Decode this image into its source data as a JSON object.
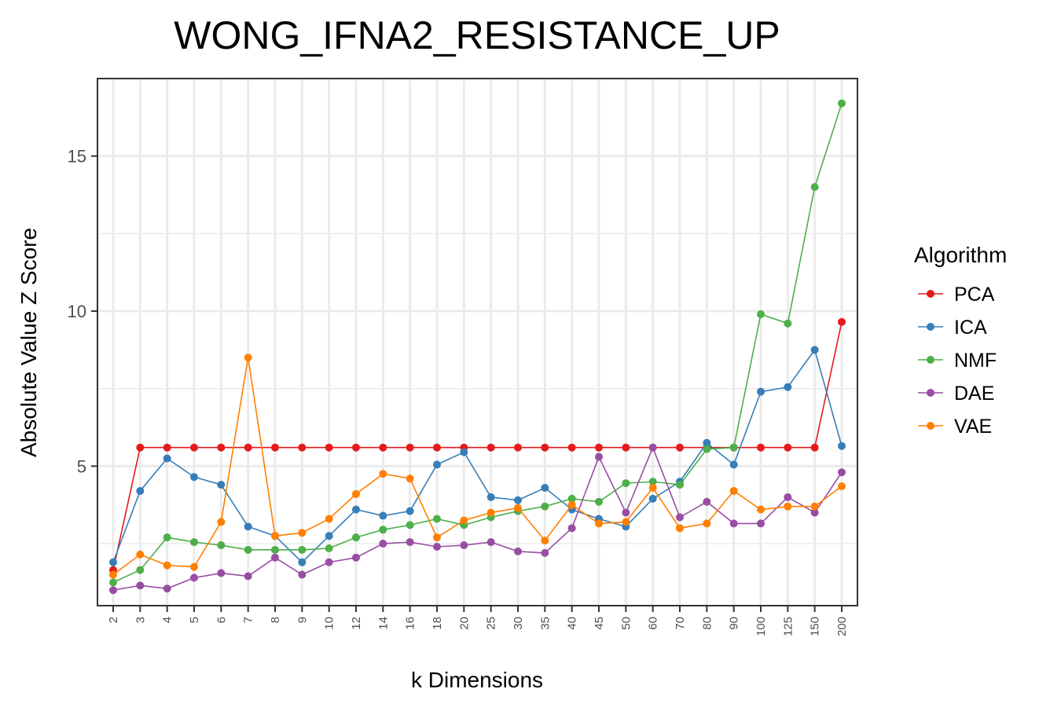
{
  "chart_data": {
    "type": "line",
    "title": "WONG_IFNA2_RESISTANCE_UP",
    "xlabel": "k Dimensions",
    "ylabel": "Absolute Value Z Score",
    "categories": [
      "2",
      "3",
      "4",
      "5",
      "6",
      "7",
      "8",
      "9",
      "10",
      "12",
      "14",
      "16",
      "18",
      "20",
      "25",
      "30",
      "35",
      "40",
      "45",
      "50",
      "60",
      "70",
      "80",
      "90",
      "100",
      "125",
      "150",
      "200"
    ],
    "y_ticks": [
      5,
      10,
      15
    ],
    "ylim": [
      0.5,
      17.5
    ],
    "grid": true,
    "legend_title": "Algorithm",
    "legend_position": "right",
    "series": [
      {
        "name": "PCA",
        "color": "#e41a1c",
        "values": [
          1.65,
          5.6,
          5.6,
          5.6,
          5.6,
          5.6,
          5.6,
          5.6,
          5.6,
          5.6,
          5.6,
          5.6,
          5.6,
          5.6,
          5.6,
          5.6,
          5.6,
          5.6,
          5.6,
          5.6,
          5.6,
          5.6,
          5.6,
          5.6,
          5.6,
          5.6,
          5.6,
          9.65
        ]
      },
      {
        "name": "ICA",
        "color": "#377eb8",
        "values": [
          1.9,
          4.2,
          5.25,
          4.65,
          4.4,
          3.05,
          2.75,
          1.9,
          2.75,
          3.6,
          3.4,
          3.55,
          5.05,
          5.45,
          4.0,
          3.9,
          4.3,
          3.6,
          3.3,
          3.05,
          3.95,
          4.5,
          5.75,
          5.05,
          7.4,
          7.55,
          8.75,
          5.65
        ]
      },
      {
        "name": "NMF",
        "color": "#4daf4a",
        "values": [
          1.25,
          1.65,
          2.7,
          2.55,
          2.45,
          2.3,
          2.3,
          2.3,
          2.35,
          2.7,
          2.95,
          3.1,
          3.3,
          3.1,
          3.35,
          3.55,
          3.7,
          3.95,
          3.85,
          4.45,
          4.5,
          4.4,
          5.55,
          5.6,
          9.9,
          9.6,
          14.0,
          16.7
        ]
      },
      {
        "name": "DAE",
        "color": "#984ea3",
        "values": [
          1.0,
          1.15,
          1.05,
          1.4,
          1.55,
          1.45,
          2.05,
          1.5,
          1.9,
          2.05,
          2.5,
          2.55,
          2.4,
          2.45,
          2.55,
          2.25,
          2.2,
          3.0,
          5.3,
          3.5,
          5.6,
          3.35,
          3.85,
          3.15,
          3.15,
          4.0,
          3.5,
          4.8
        ]
      },
      {
        "name": "VAE",
        "color": "#ff7f00",
        "values": [
          1.5,
          2.15,
          1.8,
          1.75,
          3.2,
          8.5,
          2.75,
          2.85,
          3.3,
          4.1,
          4.75,
          4.6,
          2.7,
          3.25,
          3.5,
          3.65,
          2.6,
          3.75,
          3.15,
          3.2,
          4.3,
          3.0,
          3.15,
          4.2,
          3.6,
          3.7,
          3.7,
          4.35
        ]
      }
    ]
  }
}
